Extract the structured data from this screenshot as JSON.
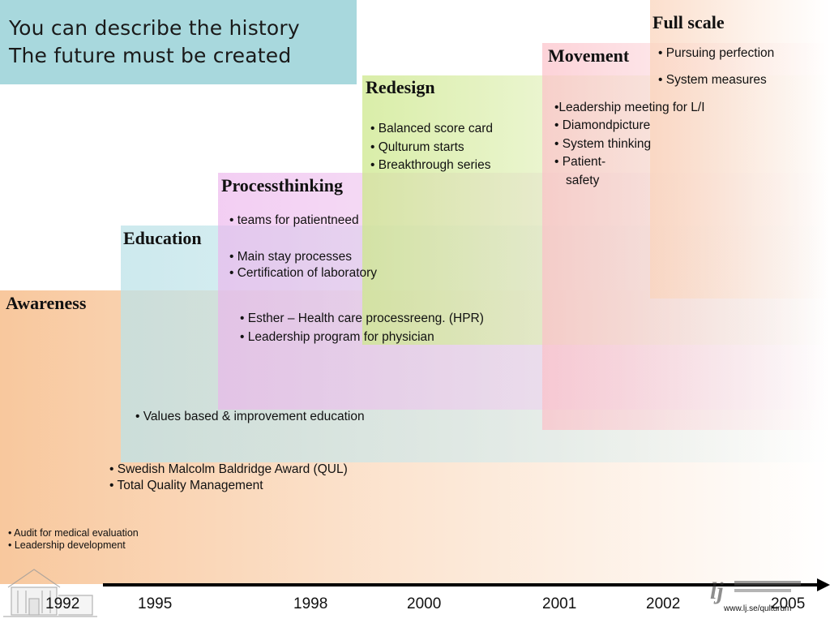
{
  "title": {
    "line1": "You can describe the history",
    "line2": "The future must be created"
  },
  "phases": {
    "awareness": {
      "label": "Awareness",
      "items": [
        "• Audit for medical evaluation",
        "• Leadership development"
      ]
    },
    "education": {
      "label": "Education",
      "items": [
        "• Swedish Malcolm Baldridge Award (QUL)",
        "• Total Quality Management",
        "• Values based & improvement education"
      ]
    },
    "processthinking": {
      "label": "Processthinking",
      "items": [
        "• teams for patientneed",
        "• Main stay processes",
        "• Certification of laboratory",
        "• Esther – Health care processreeng. (HPR)",
        "• Leadership program for physician"
      ]
    },
    "redesign": {
      "label": "Redesign",
      "items": [
        "• Balanced score card",
        "• Qulturum starts",
        "• Breakthrough series"
      ]
    },
    "movement": {
      "label": "Movement",
      "items": [
        "•Leadership meeting for L/I",
        "• Diamondpicture",
        "• System thinking",
        "• Patient-",
        "safety"
      ]
    },
    "fullscale": {
      "label": "Full scale",
      "items": [
        "• Pursuing perfection",
        "• System measures"
      ]
    }
  },
  "timeline": {
    "years": [
      "1992",
      "1995",
      "1998",
      "2000",
      "2001",
      "2002",
      "2005"
    ]
  },
  "footer": {
    "url": "www.lj.se/qulturum"
  },
  "icons": {
    "building": "building-icon",
    "logo": "ljungby-logo-icon",
    "arrow": "arrow-right-icon"
  },
  "colors": {
    "title_bg": "#a8d8dd",
    "awareness": "#f7be8c",
    "education": "#bce2e8",
    "processthinking": "#ecb4ec",
    "redesign": "#cde88c",
    "movement": "#fcc0c8",
    "fullscale": "#fad4bc"
  }
}
